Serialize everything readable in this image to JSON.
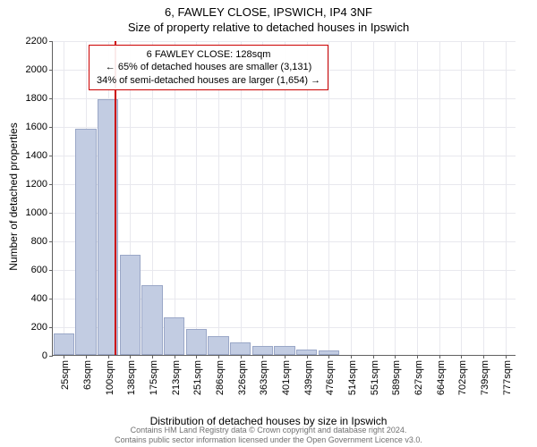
{
  "title_main": "6, FAWLEY CLOSE, IPSWICH, IP4 3NF",
  "title_sub": "Size of property relative to detached houses in Ipswich",
  "ylabel": "Number of detached properties",
  "xlabel": "Distribution of detached houses by size in Ipswich",
  "chart": {
    "type": "histogram",
    "ymax": 2200,
    "ytick_step": 200,
    "bar_fill": "#c2cce2",
    "bar_border": "#9aa7c7",
    "grid_color": "#e8e8ee",
    "axis_color": "#606060",
    "background": "#ffffff",
    "marker_color": "#cc0000",
    "marker_x_value": 128,
    "x_min": 25,
    "x_max": 796,
    "x_tick_labels": [
      "25sqm",
      "63sqm",
      "100sqm",
      "138sqm",
      "175sqm",
      "213sqm",
      "251sqm",
      "286sqm",
      "326sqm",
      "363sqm",
      "401sqm",
      "439sqm",
      "476sqm",
      "514sqm",
      "551sqm",
      "589sqm",
      "627sqm",
      "664sqm",
      "702sqm",
      "739sqm",
      "777sqm"
    ],
    "bars": [
      150,
      1580,
      1790,
      700,
      490,
      260,
      180,
      130,
      90,
      60,
      60,
      35,
      30,
      0,
      0,
      0,
      0,
      0,
      0,
      0,
      0
    ]
  },
  "info_box": {
    "line1": "6 FAWLEY CLOSE: 128sqm",
    "line2": "← 65% of detached houses are smaller (3,131)",
    "line3": "34% of semi-detached houses are larger (1,654) →"
  },
  "footer": {
    "line1": "Contains HM Land Registry data © Crown copyright and database right 2024.",
    "line2": "Contains public sector information licensed under the Open Government Licence v3.0."
  }
}
